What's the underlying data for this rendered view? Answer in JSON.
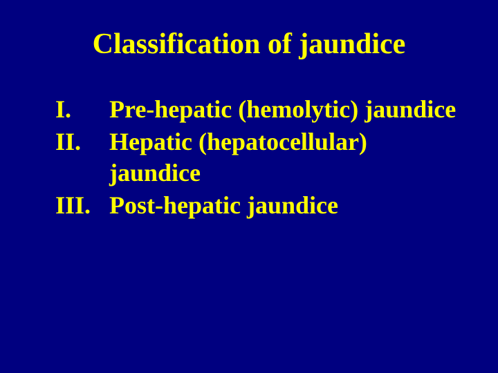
{
  "background_color": "#000080",
  "text_color": "#ffff00",
  "title": "Classification of jaundice",
  "title_fontsize": 42,
  "list_fontsize": 36,
  "font_family": "Times New Roman",
  "items": [
    {
      "marker": "I.",
      "text": "Pre-hepatic (hemolytic) jaundice"
    },
    {
      "marker": "II.",
      "text": "Hepatic (hepatocellular) jaundice"
    },
    {
      "marker": "III.",
      "text": "Post-hepatic jaundice"
    }
  ]
}
